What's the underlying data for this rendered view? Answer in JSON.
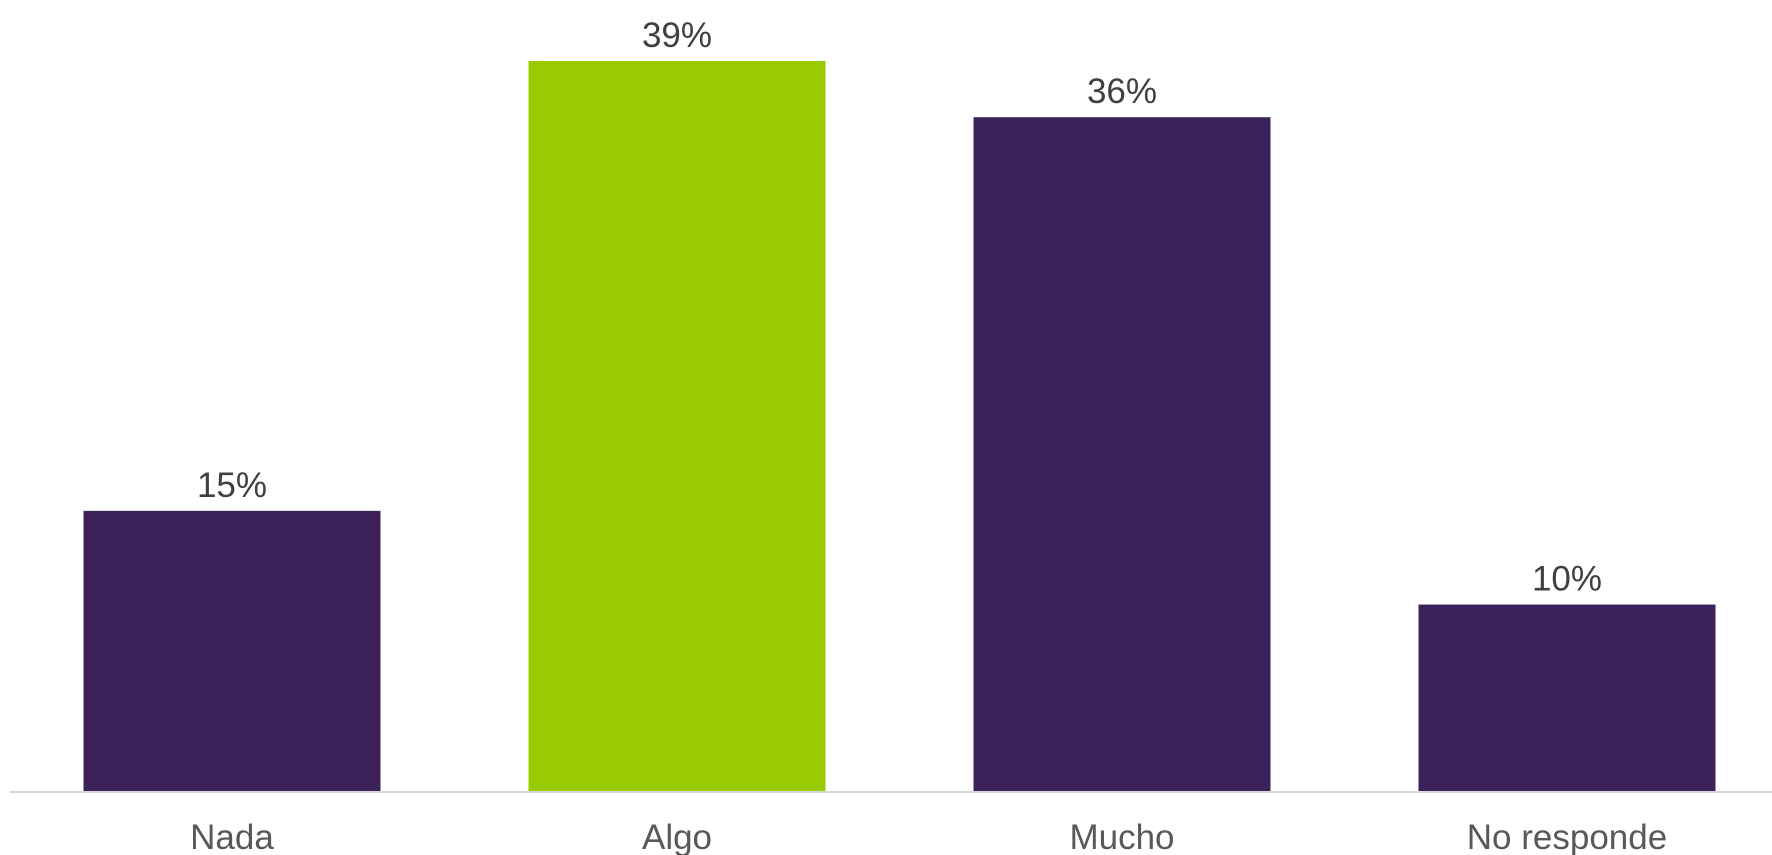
{
  "chart_data": {
    "type": "bar",
    "categories": [
      "Nada",
      "Algo",
      "Mucho",
      "No responde"
    ],
    "values": [
      15,
      39,
      36,
      10
    ],
    "data_labels": [
      "15%",
      "39%",
      "36%",
      "10%"
    ],
    "unit": "%",
    "ylim": [
      0,
      39
    ],
    "grid": false,
    "legend": "none",
    "colors": {
      "default": "#3c215b",
      "highlight": "#99cc00",
      "axis": "#d9d9d9"
    },
    "bar_colors": [
      "#3c215b",
      "#99cc00",
      "#3c215b",
      "#3c215b"
    ]
  }
}
